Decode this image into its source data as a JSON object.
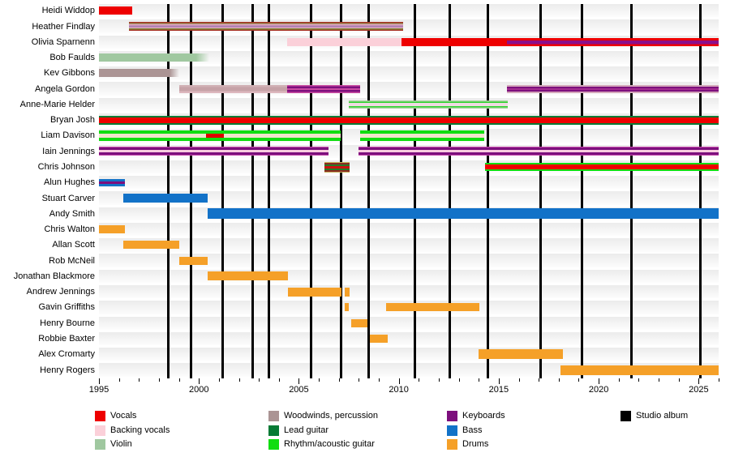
{
  "chart_data": {
    "type": "timeline",
    "description": "Band members timeline (gantt-style), years on x-axis, members on y-axis; vertical black lines mark studio albums",
    "x_axis": {
      "start_year": 1995,
      "end_year": 2026,
      "major_tick_labels": [
        "1995",
        "2000",
        "2005",
        "2010",
        "2015",
        "2020",
        "2025"
      ],
      "major_tick_years": [
        1995,
        2000,
        2005,
        2010,
        2015,
        2020,
        2025
      ],
      "minor_tick_interval": 1
    },
    "album_line_years": [
      1998.45,
      1999.6,
      2001.2,
      2002.7,
      2003.5,
      2005.6,
      2007.1,
      2008.5,
      2010.8,
      2012.55,
      2014.45,
      2017.1,
      2019.15,
      2021.65,
      2025.1
    ],
    "role_colors": {
      "vocals": "#ee0000",
      "backing_vocals": "#fbd0d9",
      "violin": "#a0c8a0",
      "woodwinds_percussion": "#ab9494",
      "lead_guitar": "#077a35",
      "rhythm_acoustic_guitar": "#11dd11",
      "keyboards": "#7d0f7d",
      "bass": "#1272c8",
      "drums": "#f5a028",
      "studio_album": "#000000"
    },
    "members": [
      {
        "name": "Heidi Widdop",
        "bars": [
          {
            "start": 1995.0,
            "end": 1996.65,
            "h": 10,
            "stripes": [
              [
                "#ee0000",
                100
              ]
            ]
          }
        ]
      },
      {
        "name": "Heather Findlay",
        "bars": [
          {
            "start": 1996.5,
            "end": 2010.2,
            "h": 11,
            "stripes": [
              [
                "#a93226",
                15
              ],
              [
                "#7d8b38",
                10
              ],
              [
                "#dfa6be",
                17
              ],
              [
                "#a87ab0",
                16
              ],
              [
                "#dfa6be",
                17
              ],
              [
                "#7d8b38",
                10
              ],
              [
                "#a93226",
                15
              ]
            ]
          }
        ]
      },
      {
        "name": "Olivia Sparnenn",
        "bars": [
          {
            "start": 2004.4,
            "end": 2010.15,
            "h": 10,
            "stripes": [
              [
                "#fbd0d9",
                100
              ]
            ]
          },
          {
            "start": 2010.15,
            "end": 2015.4,
            "h": 10,
            "stripes": [
              [
                "#ee0000",
                100
              ]
            ]
          },
          {
            "start": 2015.4,
            "end": 2026.0,
            "h": 10,
            "stripes": [
              [
                "#ee0000",
                28
              ],
              [
                "#8b0f8b",
                46
              ],
              [
                "#ee0000",
                26
              ]
            ]
          }
        ]
      },
      {
        "name": "Bob Faulds",
        "bars": [
          {
            "start": 1995.0,
            "end": 2000.5,
            "h": 10,
            "fade": true,
            "stripes": [
              [
                "#a0c8a0",
                100
              ]
            ]
          }
        ]
      },
      {
        "name": "Kev Gibbons",
        "bars": [
          {
            "start": 1995.0,
            "end": 1999.0,
            "h": 10,
            "fade": true,
            "stripes": [
              [
                "#ab9494",
                100
              ]
            ]
          }
        ]
      },
      {
        "name": "Angela Gordon",
        "bars": [
          {
            "start": 1999.0,
            "end": 2004.4,
            "h": 10,
            "stripes": [
              [
                "#d0b0b4",
                25
              ],
              [
                "#c6a2a7",
                50
              ],
              [
                "#ddb8be",
                25
              ]
            ]
          },
          {
            "start": 2004.4,
            "end": 2008.05,
            "h": 10,
            "stripes": [
              [
                "#cc4da2",
                13
              ],
              [
                "#7d0f7d",
                27
              ],
              [
                "#cc4da2",
                18
              ],
              [
                "#7d0f7d",
                27
              ],
              [
                "#cc4da2",
                15
              ]
            ]
          },
          {
            "start": 2015.4,
            "end": 2026.0,
            "h": 10,
            "stripes": [
              [
                "#d4a8ba",
                20
              ],
              [
                "#7d0f7d",
                25
              ],
              [
                "#cc4da2",
                12
              ],
              [
                "#7d0f7d",
                25
              ],
              [
                "#d4a8ba",
                18
              ]
            ]
          }
        ]
      },
      {
        "name": "Anne-Marie Helder",
        "bars": [
          {
            "start": 2007.5,
            "end": 2015.45,
            "h": 10,
            "stripes": [
              [
                "#a8d2a0",
                17
              ],
              [
                "#2ed42e",
                15
              ],
              [
                "#f0dae2",
                36
              ],
              [
                "#2ed42e",
                15
              ],
              [
                "#a8d2a0",
                17
              ]
            ]
          }
        ]
      },
      {
        "name": "Bryan Josh",
        "bars": [
          {
            "start": 1995.0,
            "end": 2026.0,
            "h": 11,
            "stripes": [
              [
                "#077a35",
                19
              ],
              [
                "#ee0000",
                62
              ],
              [
                "#077a35",
                19
              ]
            ]
          }
        ]
      },
      {
        "name": "Liam Davison",
        "bars": [
          {
            "start": 1995.0,
            "end": 2000.35,
            "h": 13,
            "stripes": [
              [
                "#11dd11",
                30
              ],
              [
                "#f2e4cc",
                40
              ],
              [
                "#11dd11",
                30
              ]
            ]
          },
          {
            "start": 2000.35,
            "end": 2001.25,
            "h": 13,
            "stripes": [
              [
                "#11dd11",
                30
              ],
              [
                "#dd0000",
                40
              ],
              [
                "#11dd11",
                30
              ]
            ]
          },
          {
            "start": 2001.25,
            "end": 2007.1,
            "h": 13,
            "stripes": [
              [
                "#11dd11",
                30
              ],
              [
                "#f2e4cc",
                40
              ],
              [
                "#11dd11",
                30
              ]
            ]
          },
          {
            "start": 2008.05,
            "end": 2014.27,
            "h": 13,
            "stripes": [
              [
                "#11dd11",
                30
              ],
              [
                "#f2e4cc",
                40
              ],
              [
                "#11dd11",
                30
              ]
            ]
          }
        ]
      },
      {
        "name": "Iain Jennings",
        "bars": [
          {
            "start": 1995.0,
            "end": 2006.5,
            "h": 11,
            "stripes": [
              [
                "#c94fae",
                9
              ],
              [
                "#7d0f7d",
                27
              ],
              [
                "#f8cce0",
                28
              ],
              [
                "#7d0f7d",
                27
              ],
              [
                "#c94fae",
                9
              ]
            ]
          },
          {
            "start": 2008.0,
            "end": 2026.0,
            "h": 11,
            "stripes": [
              [
                "#c94fae",
                9
              ],
              [
                "#7d0f7d",
                27
              ],
              [
                "#f8cce0",
                28
              ],
              [
                "#7d0f7d",
                27
              ],
              [
                "#c94fae",
                9
              ]
            ]
          }
        ]
      },
      {
        "name": "Chris Johnson",
        "bars": [
          {
            "start": 2006.3,
            "end": 2007.55,
            "h": 13,
            "stripes": [
              [
                "#c8b860",
                8
              ],
              [
                "#8a2a20",
                15
              ],
              [
                "#267a26",
                15
              ],
              [
                "#cc1111",
                24
              ],
              [
                "#267a26",
                15
              ],
              [
                "#8a2a20",
                15
              ],
              [
                "#c8b860",
                8
              ]
            ]
          },
          {
            "start": 2014.3,
            "end": 2026.0,
            "h": 10,
            "stripes": [
              [
                "#11dd11",
                20
              ],
              [
                "#ee0000",
                60
              ],
              [
                "#11dd11",
                20
              ]
            ]
          }
        ]
      },
      {
        "name": "Alun Hughes",
        "bars": [
          {
            "start": 1995.0,
            "end": 1996.3,
            "h": 9,
            "stripes": [
              [
                "#1272c8",
                33
              ],
              [
                "#7d0f7d",
                34
              ],
              [
                "#1272c8",
                33
              ]
            ]
          }
        ]
      },
      {
        "name": "Stuart Carver",
        "bars": [
          {
            "start": 1996.2,
            "end": 2000.45,
            "h": 11,
            "stripes": [
              [
                "#1272c8",
                100
              ]
            ]
          }
        ]
      },
      {
        "name": "Andy Smith",
        "bars": [
          {
            "start": 2000.45,
            "end": 2026.0,
            "h": 13,
            "stripes": [
              [
                "#1272c8",
                100
              ]
            ]
          }
        ]
      },
      {
        "name": "Chris Walton",
        "bars": [
          {
            "start": 1995.0,
            "end": 1996.3,
            "h": 10,
            "stripes": [
              [
                "#f5a028",
                100
              ]
            ]
          }
        ]
      },
      {
        "name": "Allan Scott",
        "bars": [
          {
            "start": 1996.2,
            "end": 1999.0,
            "h": 10,
            "stripes": [
              [
                "#f5a028",
                100
              ]
            ]
          }
        ]
      },
      {
        "name": "Rob McNeil",
        "bars": [
          {
            "start": 1999.0,
            "end": 2000.45,
            "h": 10,
            "stripes": [
              [
                "#f5a028",
                100
              ]
            ]
          }
        ]
      },
      {
        "name": "Jonathan Blackmore",
        "bars": [
          {
            "start": 2000.45,
            "end": 2004.45,
            "h": 11,
            "stripes": [
              [
                "#f5a028",
                100
              ]
            ]
          }
        ]
      },
      {
        "name": "Andrew Jennings",
        "bars": [
          {
            "start": 2004.45,
            "end": 2007.15,
            "h": 11,
            "stripes": [
              [
                "#f5a028",
                100
              ]
            ]
          },
          {
            "start": 2007.3,
            "end": 2007.55,
            "h": 11,
            "stripes": [
              [
                "#f5a028",
                100
              ]
            ]
          }
        ]
      },
      {
        "name": "Gavin Griffiths",
        "bars": [
          {
            "start": 2007.3,
            "end": 2007.5,
            "h": 10,
            "stripes": [
              [
                "#f5a028",
                100
              ]
            ]
          },
          {
            "start": 2009.35,
            "end": 2014.05,
            "h": 10,
            "stripes": [
              [
                "#f5a028",
                100
              ]
            ]
          }
        ]
      },
      {
        "name": "Henry Bourne",
        "bars": [
          {
            "start": 2007.6,
            "end": 2008.45,
            "h": 10,
            "stripes": [
              [
                "#f5a028",
                100
              ]
            ]
          }
        ]
      },
      {
        "name": "Robbie Baxter",
        "bars": [
          {
            "start": 2008.55,
            "end": 2009.45,
            "h": 10,
            "stripes": [
              [
                "#f5a028",
                100
              ]
            ]
          }
        ]
      },
      {
        "name": "Alex Cromarty",
        "bars": [
          {
            "start": 2014.0,
            "end": 2018.2,
            "h": 12,
            "stripes": [
              [
                "#f5a028",
                100
              ]
            ]
          }
        ]
      },
      {
        "name": "Henry Rogers",
        "bars": [
          {
            "start": 2018.1,
            "end": 2026.0,
            "h": 12,
            "stripes": [
              [
                "#f5a028",
                100
              ]
            ]
          }
        ]
      }
    ],
    "legend": {
      "columns": [
        [
          {
            "label": "Vocals",
            "color": "#ee0000"
          },
          {
            "label": "Backing vocals",
            "color": "#fbd0d9"
          },
          {
            "label": "Violin",
            "color": "#a0c8a0"
          }
        ],
        [
          {
            "label": "Woodwinds, percussion",
            "color": "#ab9494"
          },
          {
            "label": "Lead guitar",
            "color": "#077a35"
          },
          {
            "label": "Rhythm/acoustic guitar",
            "color": "#11dd11"
          }
        ],
        [
          {
            "label": "Keyboards",
            "color": "#7d0f7d"
          },
          {
            "label": "Bass",
            "color": "#1272c8"
          },
          {
            "label": "Drums",
            "color": "#f5a028"
          }
        ],
        [
          {
            "label": "Studio album",
            "color": "#000000"
          }
        ]
      ]
    }
  }
}
